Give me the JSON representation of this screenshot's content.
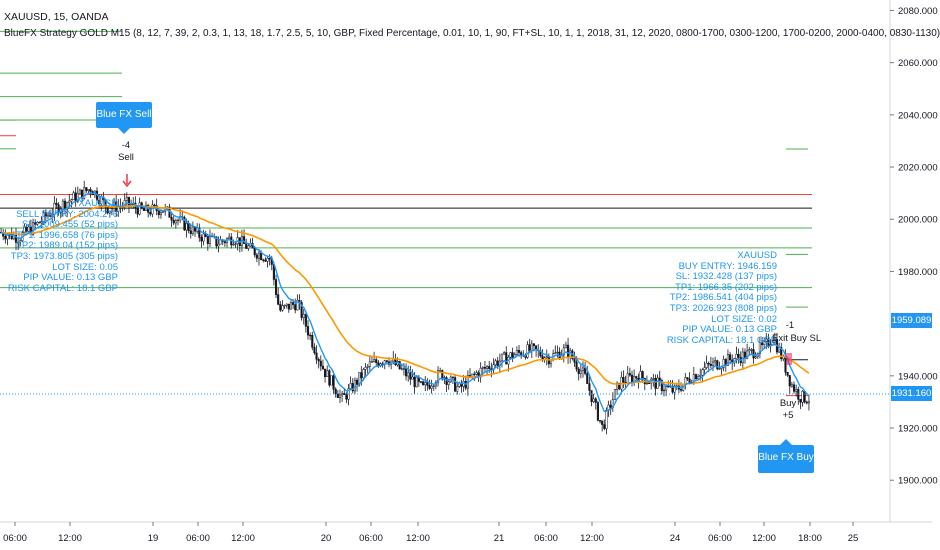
{
  "header": {
    "symbol_line": "XAUUSD, 15, OANDA",
    "strategy_line": "BlueFX Strategy GOLD M15 (8, 12, 7, 39, 2, 0.3, 1, 13, 18, 1.7, 2.5, 5, 10, GBP, Fixed Percentage, 0.01, 10, 1, 90, FT+SL, 10, 1, 1, 2018, 31, 12, 2020, 0800-1700, 0300-1200, 1700-0200, 2000-0400, 0830-1130)"
  },
  "colors": {
    "up_candle": "#131722",
    "down_candle": "#131722",
    "ma_fast": "#2196f3",
    "ma_slow": "#ff9800",
    "tp_line": "#4caf50",
    "sl_line": "#f44336",
    "entry_line": "#131722",
    "signal_bg": "#2196f3",
    "last_price_tag": "#2196f3",
    "ma_tag": "#2196f3"
  },
  "signals": {
    "sell_badge": "Blue FX Sell",
    "sell_count": "-4",
    "sell_label": "Sell",
    "buy_badge": "Blue FX Buy",
    "buy_count": "+5",
    "buy_label": "Buy",
    "exit_count": "-1",
    "exit_label": "Exit Buy SL"
  },
  "sell_info": [
    "XAUUSD",
    "SELL ENTRY: 2004.276",
    "SL: 2009.455 (52 pips)",
    "TP1: 1996.658 (76 pips)",
    "TP2: 1989.04 (152 pips)",
    "TP3: 1973.805 (305 pips)",
    "LOT SIZE: 0.05",
    "PIP VALUE: 0.13 GBP",
    "RISK CAPITAL: 18.1 GBP"
  ],
  "buy_info": [
    "XAUUSD",
    "BUY ENTRY: 1946.159",
    "SL: 1932.428 (137 pips)",
    "TP1: 1966.35 (202 pips)",
    "TP2: 1986.541 (404 pips)",
    "TP3: 2026.923 (808 pips)",
    "LOT SIZE: 0.02",
    "PIP VALUE: 0.13 GBP",
    "RISK CAPITAL: 18.1 GBP"
  ],
  "price_tags": {
    "ma_value": "1959.089",
    "last_price": "1931.160"
  },
  "chart_data": {
    "type": "candlestick",
    "symbol": "XAUUSD",
    "timeframe": "15",
    "broker": "OANDA",
    "y_range": [
      1884,
      2084
    ],
    "y_ticks": [
      "2080.000",
      "2060.000",
      "2040.000",
      "2020.000",
      "2000.000",
      "1980.000",
      "1959.089",
      "1940.000",
      "1931.160",
      "1920.000",
      "1900.000"
    ],
    "x_ticks": [
      "06:00",
      "12:00",
      "19",
      "06:00",
      "12:00",
      "20",
      "06:00",
      "12:00",
      "21",
      "06:00",
      "12:00",
      "24",
      "06:00",
      "12:00",
      "18:00",
      "25"
    ],
    "close_path": [
      [
        0,
        1995
      ],
      [
        0.02,
        1993
      ],
      [
        0.04,
        1998
      ],
      [
        0.06,
        2004
      ],
      [
        0.08,
        2008
      ],
      [
        0.1,
        2012
      ],
      [
        0.12,
        2004
      ],
      [
        0.14,
        2006
      ],
      [
        0.16,
        2003
      ],
      [
        0.18,
        2004
      ],
      [
        0.2,
        1999
      ],
      [
        0.22,
        1994
      ],
      [
        0.24,
        1991
      ],
      [
        0.26,
        1993
      ],
      [
        0.28,
        1988
      ],
      [
        0.3,
        1985
      ],
      [
        0.31,
        1965
      ],
      [
        0.33,
        1968
      ],
      [
        0.35,
        1950
      ],
      [
        0.36,
        1942
      ],
      [
        0.38,
        1931
      ],
      [
        0.39,
        1935
      ],
      [
        0.41,
        1944
      ],
      [
        0.43,
        1947
      ],
      [
        0.45,
        1941
      ],
      [
        0.47,
        1935
      ],
      [
        0.49,
        1941
      ],
      [
        0.51,
        1935
      ],
      [
        0.53,
        1941
      ],
      [
        0.55,
        1945
      ],
      [
        0.57,
        1948
      ],
      [
        0.59,
        1950
      ],
      [
        0.61,
        1947
      ],
      [
        0.63,
        1950
      ],
      [
        0.65,
        1940
      ],
      [
        0.66,
        1930
      ],
      [
        0.67,
        1920
      ],
      [
        0.68,
        1930
      ],
      [
        0.69,
        1938
      ],
      [
        0.71,
        1940
      ],
      [
        0.73,
        1937
      ],
      [
        0.75,
        1934
      ],
      [
        0.77,
        1940
      ],
      [
        0.79,
        1944
      ],
      [
        0.81,
        1946
      ],
      [
        0.83,
        1948
      ],
      [
        0.85,
        1951
      ],
      [
        0.86,
        1955
      ],
      [
        0.87,
        1947
      ],
      [
        0.88,
        1937
      ],
      [
        0.89,
        1932
      ],
      [
        0.9,
        1931.16
      ]
    ],
    "series": [
      {
        "name": "",
        "type": "ma-fast",
        "values": []
      },
      {
        "name": "",
        "type": "ma-slow",
        "values": []
      }
    ],
    "levels": [
      {
        "kind": "tp",
        "value": 1973.805,
        "side": "sell"
      },
      {
        "kind": "tp",
        "value": 1989.04,
        "side": "sell"
      },
      {
        "kind": "tp",
        "value": 1996.658,
        "side": "sell"
      },
      {
        "kind": "entry",
        "value": 2004.276,
        "side": "sell"
      },
      {
        "kind": "sl",
        "value": 2009.455,
        "side": "sell"
      },
      {
        "kind": "tp",
        "value": 2026.923,
        "side": "buy"
      },
      {
        "kind": "tp",
        "value": 1986.541,
        "side": "buy"
      },
      {
        "kind": "tp",
        "value": 1966.35,
        "side": "buy"
      },
      {
        "kind": "entry",
        "value": 1946.159,
        "side": "buy"
      },
      {
        "kind": "sl",
        "value": 1932.428,
        "side": "buy"
      }
    ],
    "last_price": 1931.16,
    "ma_value": 1959.089,
    "grid": false
  }
}
